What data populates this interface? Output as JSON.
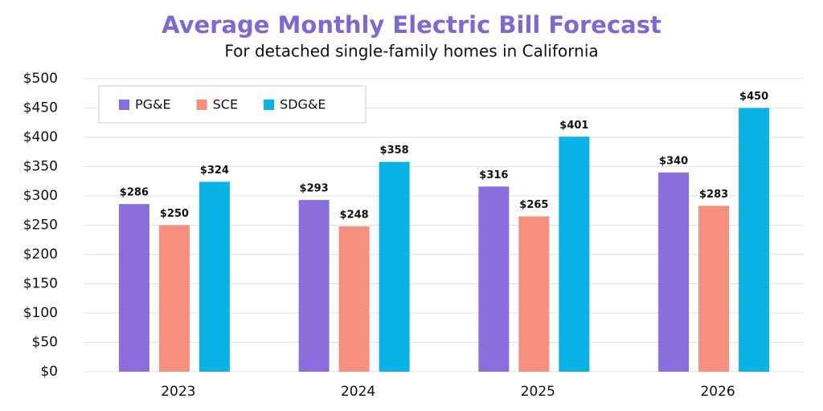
{
  "chart_data": {
    "type": "bar",
    "title": "Average Monthly Electric Bill  Forecast",
    "subtitle": "For detached single-family homes in California",
    "categories": [
      "2023",
      "2024",
      "2025",
      "2026"
    ],
    "series": [
      {
        "name": "PG&E",
        "color": "#8a6fdc",
        "values": [
          286,
          293,
          316,
          340
        ],
        "value_labels": [
          "$286",
          "$293",
          "$316",
          "$340"
        ]
      },
      {
        "name": "SCE",
        "color": "#f78f7e",
        "values": [
          250,
          248,
          265,
          283
        ],
        "value_labels": [
          "$250",
          "$248",
          "$265",
          "$283"
        ]
      },
      {
        "name": "SDG&E",
        "color": "#0ab3e6",
        "values": [
          324,
          358,
          401,
          450
        ],
        "value_labels": [
          "$324",
          "$358",
          "$401",
          "$450"
        ]
      }
    ],
    "ylim": [
      0,
      500
    ],
    "yticks": [
      {
        "value": 0,
        "label": "$0"
      },
      {
        "value": 50,
        "label": "$50"
      },
      {
        "value": 100,
        "label": "$100"
      },
      {
        "value": 150,
        "label": "$150"
      },
      {
        "value": 200,
        "label": "$200"
      },
      {
        "value": 250,
        "label": "$250"
      },
      {
        "value": 300,
        "label": "$300"
      },
      {
        "value": 350,
        "label": "$350"
      },
      {
        "value": 400,
        "label": "$400"
      },
      {
        "value": 450,
        "label": "$450"
      },
      {
        "value": 500,
        "label": "$500"
      }
    ],
    "grid": true,
    "legend": "top-left"
  }
}
